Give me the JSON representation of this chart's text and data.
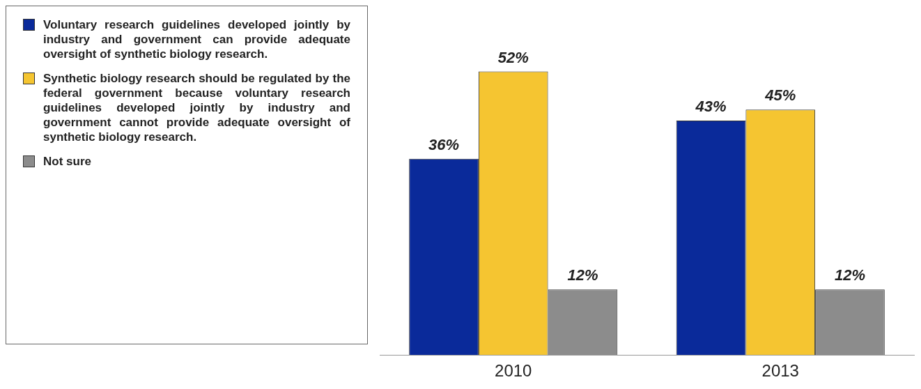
{
  "chart_data": {
    "type": "bar",
    "categories": [
      "2010",
      "2013"
    ],
    "series": [
      {
        "name": "Voluntary research guidelines developed jointly by industry and government can provide adequate oversight of synthetic biology research.",
        "color": "#0a2a9a",
        "values": [
          36,
          43
        ],
        "value_labels": [
          "36%",
          "43%"
        ]
      },
      {
        "name": "Synthetic biology research should be regulated by the federal government because voluntary research guidelines developed jointly by industry and government cannot provide adequate oversight of synthetic biology research.",
        "color": "#f5c531",
        "values": [
          52,
          45
        ],
        "value_labels": [
          "52%",
          "45%"
        ]
      },
      {
        "name": "Not sure",
        "color": "#8c8c8c",
        "values": [
          12,
          12
        ],
        "value_labels": [
          "12%",
          "12%"
        ]
      }
    ],
    "legend": "left",
    "grid": false
  }
}
